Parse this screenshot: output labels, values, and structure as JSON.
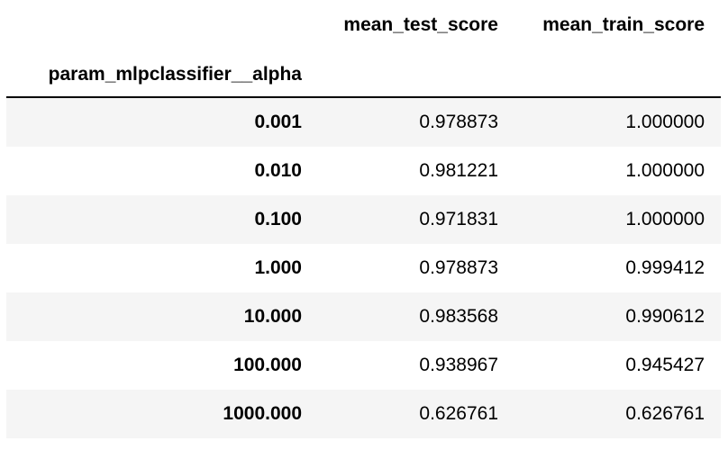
{
  "table": {
    "columns": [
      "mean_test_score",
      "mean_train_score"
    ],
    "index_name": "param_mlpclassifier__alpha",
    "rows": [
      [
        "0.001",
        "0.978873",
        "1.000000"
      ],
      [
        "0.010",
        "0.981221",
        "1.000000"
      ],
      [
        "0.100",
        "0.971831",
        "1.000000"
      ],
      [
        "1.000",
        "0.978873",
        "0.999412"
      ],
      [
        "10.000",
        "0.983568",
        "0.990612"
      ],
      [
        "100.000",
        "0.938967",
        "0.945427"
      ],
      [
        "1000.000",
        "0.626761",
        "0.626761"
      ]
    ]
  }
}
